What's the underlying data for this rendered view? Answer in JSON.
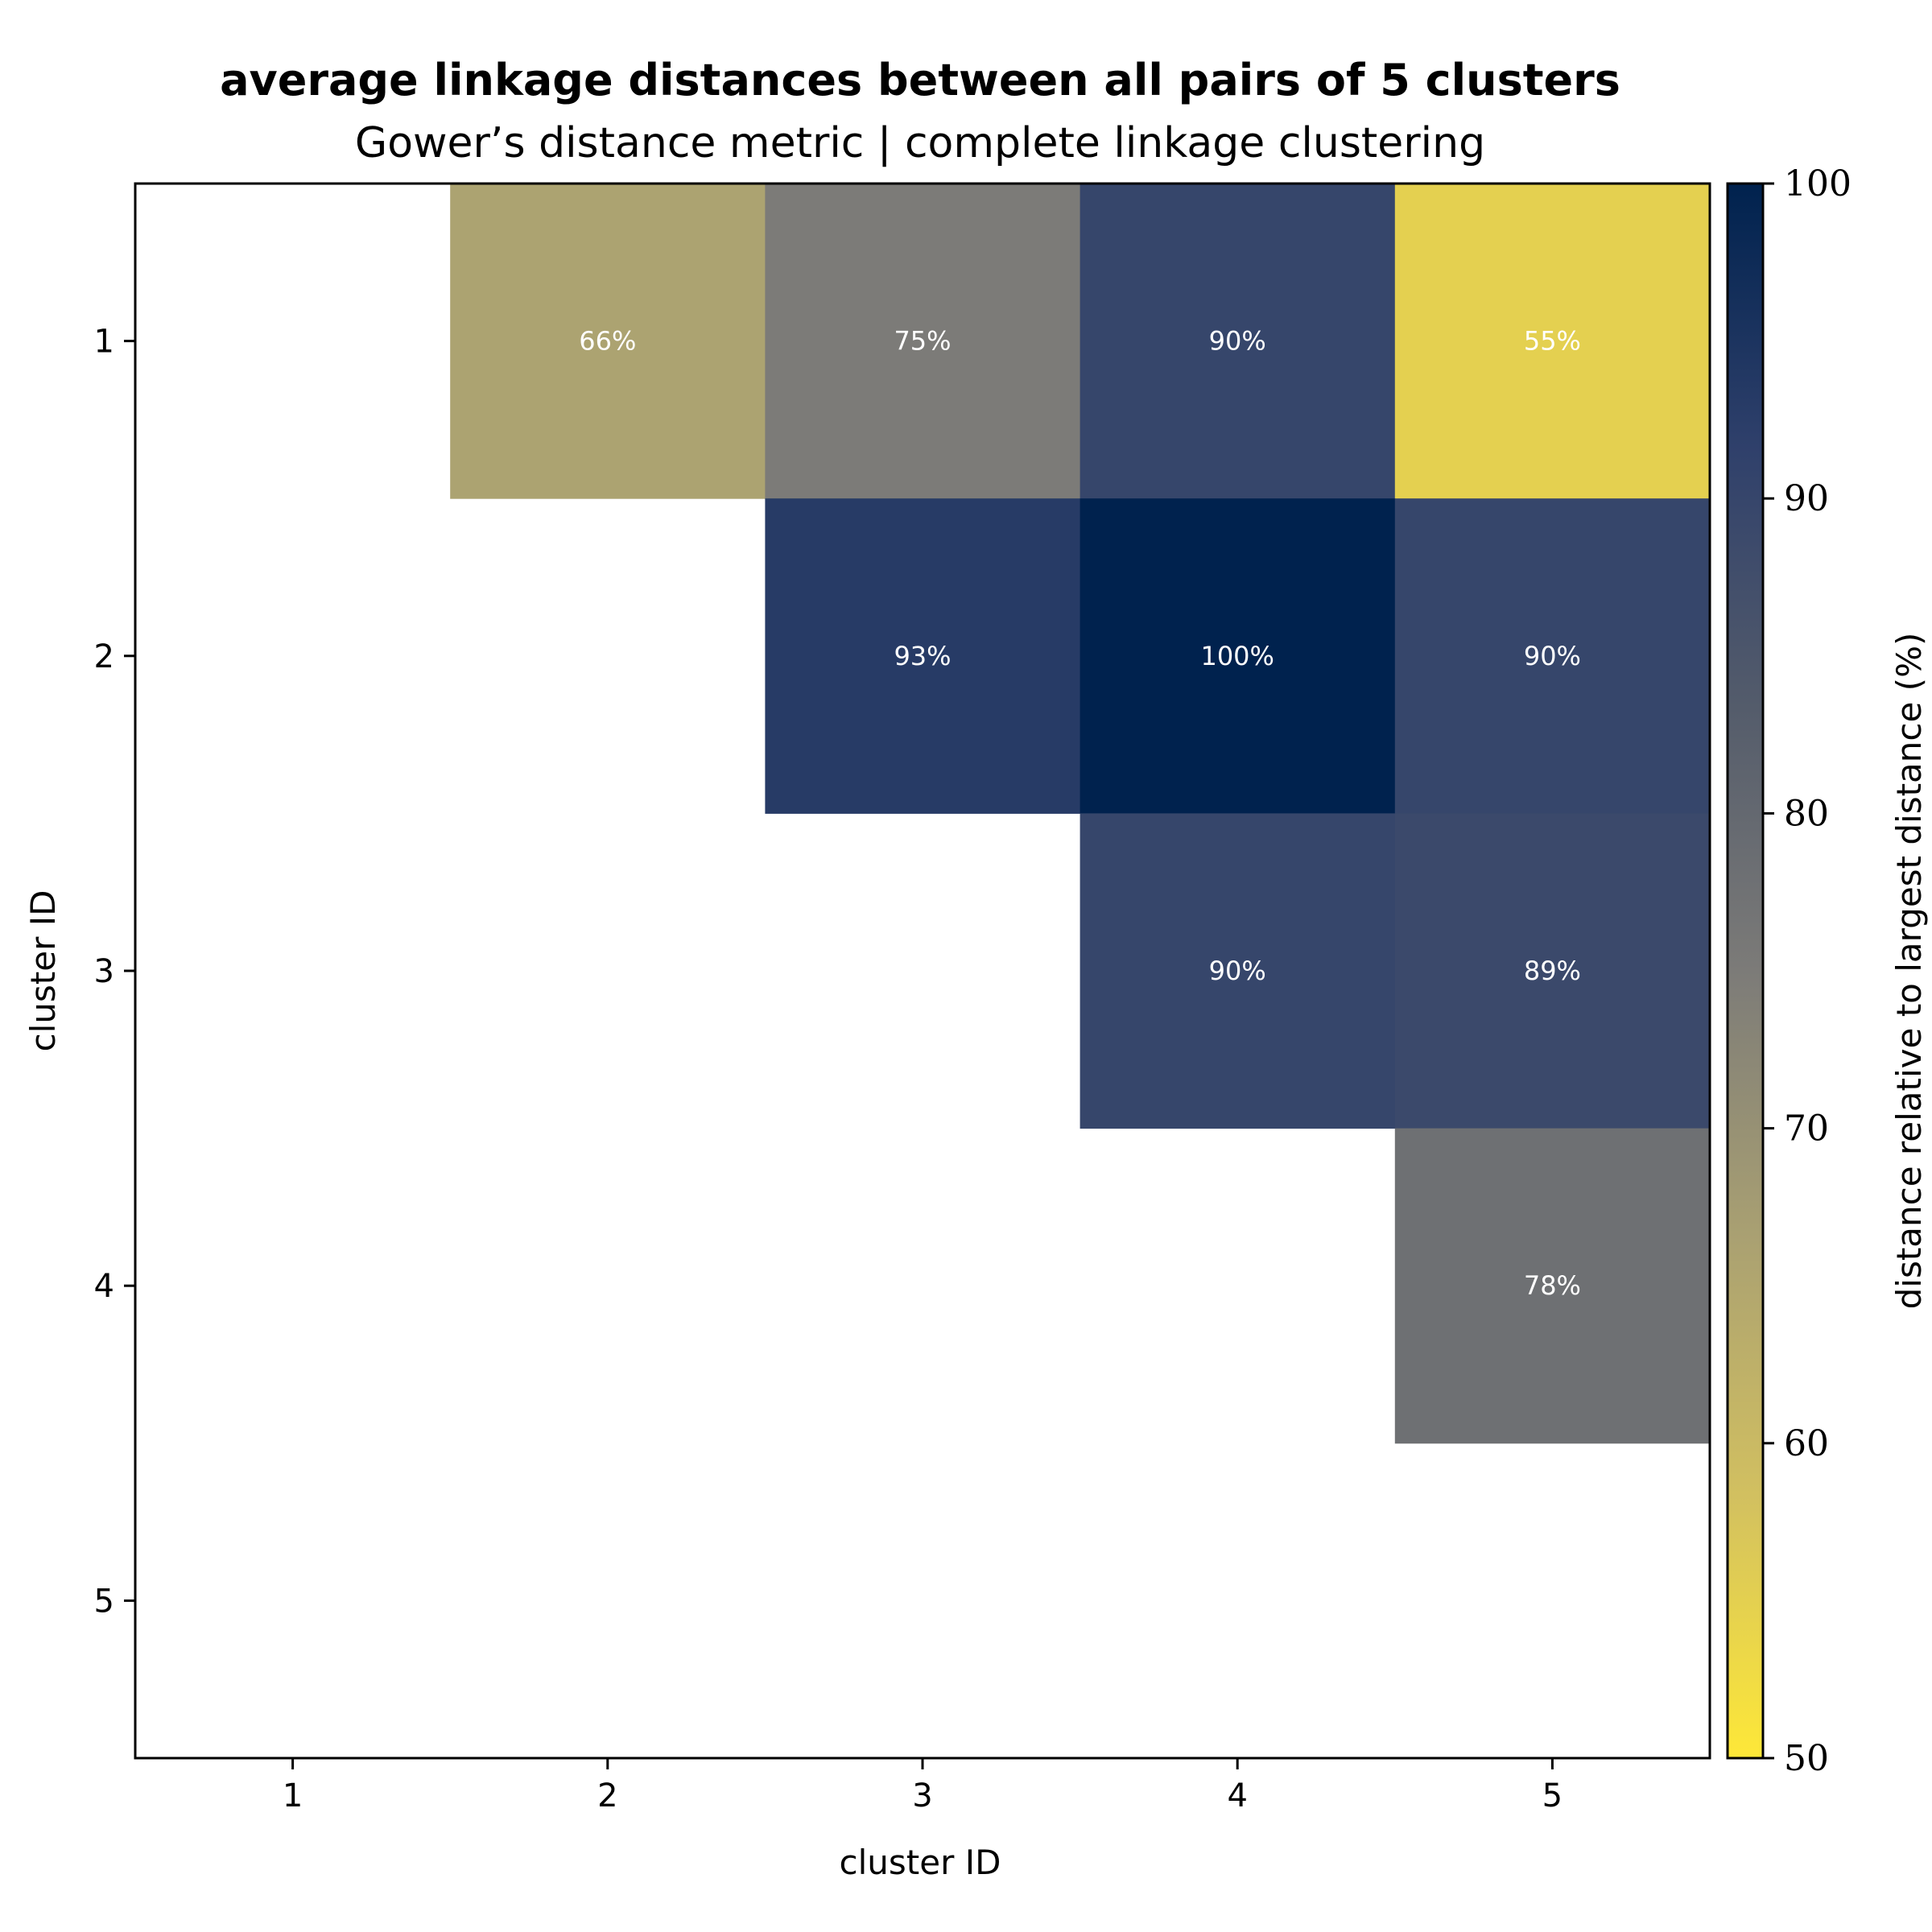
{
  "chart_data": {
    "type": "heatmap",
    "title": "average linkage distances between all pairs of 5 clusters",
    "subtitle": "Gower’s distance metric | complete linkage clustering",
    "xlabel": "cluster ID",
    "ylabel": "cluster ID",
    "x_categories": [
      "1",
      "2",
      "3",
      "4",
      "5"
    ],
    "y_categories": [
      "1",
      "2",
      "3",
      "4",
      "5"
    ],
    "cells": [
      {
        "row": "1",
        "col": "2",
        "value": 66,
        "label": "66%"
      },
      {
        "row": "1",
        "col": "3",
        "value": 75,
        "label": "75%"
      },
      {
        "row": "1",
        "col": "4",
        "value": 90,
        "label": "90%"
      },
      {
        "row": "1",
        "col": "5",
        "value": 55,
        "label": "55%"
      },
      {
        "row": "2",
        "col": "3",
        "value": 93,
        "label": "93%"
      },
      {
        "row": "2",
        "col": "4",
        "value": 100,
        "label": "100%"
      },
      {
        "row": "2",
        "col": "5",
        "value": 90,
        "label": "90%"
      },
      {
        "row": "3",
        "col": "4",
        "value": 90,
        "label": "90%"
      },
      {
        "row": "3",
        "col": "5",
        "value": 89,
        "label": "89%"
      },
      {
        "row": "4",
        "col": "5",
        "value": 78,
        "label": "78%"
      }
    ],
    "colorbar": {
      "label": "distance relative to largest distance (%)",
      "range": [
        50,
        100
      ],
      "ticks": [
        "50",
        "60",
        "70",
        "80",
        "90",
        "100"
      ],
      "colormap": "cividis_r",
      "stops": [
        "#fee838",
        "#d2c060",
        "#a9a072",
        "#7c7b78",
        "#545c6b",
        "#2f406b",
        "#00224e"
      ]
    },
    "grid": false,
    "legend": "colorbar-right"
  }
}
